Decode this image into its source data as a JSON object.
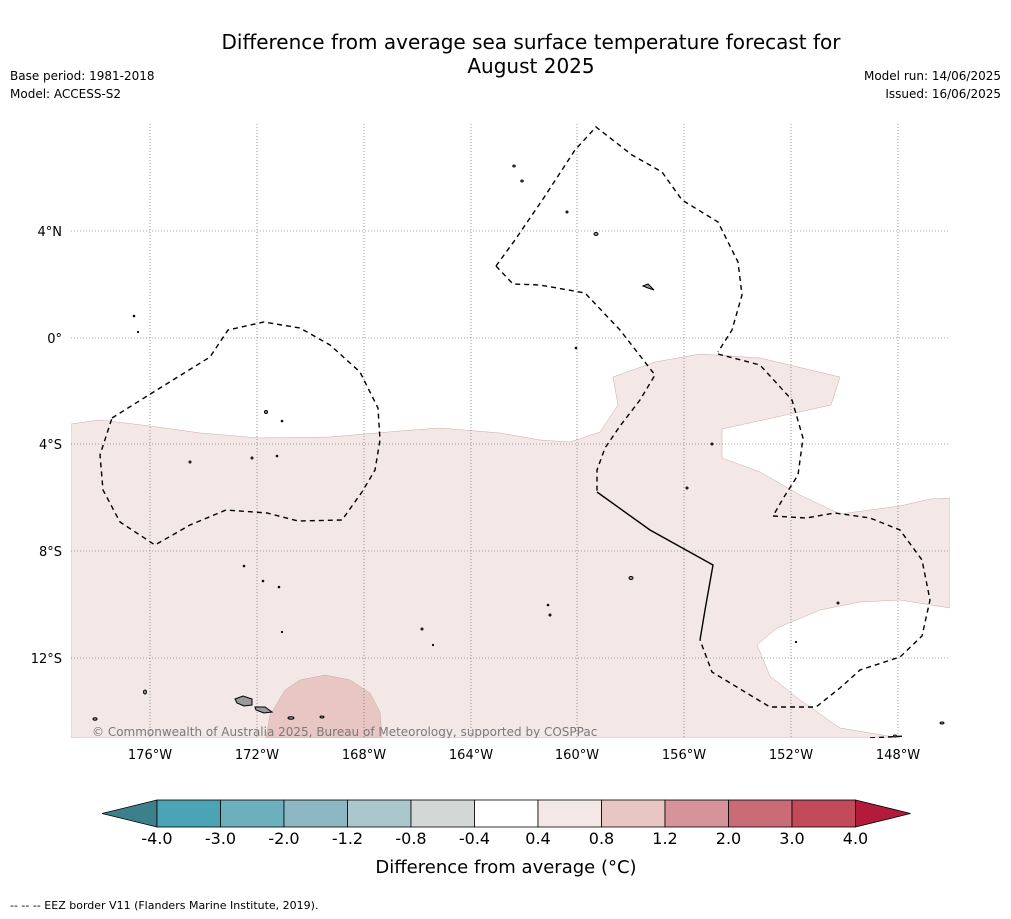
{
  "header": {
    "title_line1": "Difference from average sea surface temperature forecast for",
    "title_line2": "August 2025",
    "base_period": "Base period: 1981-2018",
    "model": "Model: ACCESS-S2",
    "model_run": "Model run: 14/06/2025",
    "issued": "Issued: 16/06/2025"
  },
  "map": {
    "latitude_labels": [
      "4°N",
      "0°",
      "4°S",
      "8°S",
      "12°S"
    ],
    "longitude_labels": [
      "176°W",
      "172°W",
      "168°W",
      "164°W",
      "160°W",
      "156°W",
      "152°W",
      "148°W"
    ],
    "copyright": "© Commonwealth of Australia 2025, Bureau of Meteorology, supported by COSPPac",
    "anomaly_colors": {
      "band_0.4_0.8": "#f4e8e7",
      "band_0.8_1.2": "#e8c6c3",
      "land": "#999999"
    }
  },
  "colorbar": {
    "ticks": [
      "-4.0",
      "-3.0",
      "-2.0",
      "-1.2",
      "-0.8",
      "-0.4",
      "0.4",
      "0.8",
      "1.2",
      "2.0",
      "3.0",
      "4.0"
    ],
    "colors": [
      "#3d7f8a",
      "#4aa4b5",
      "#6cb0be",
      "#8db8c3",
      "#a9c7cd",
      "#d3d8d7",
      "#ffffff",
      "#f4e8e7",
      "#e8c6c3",
      "#d6939a",
      "#c96c78",
      "#c24a5b",
      "#b31b3a"
    ],
    "label": "Difference from average (°C)"
  },
  "footer": {
    "text": "--  --  -- EEZ border V11 (Flanders Marine Institute, 2019)."
  }
}
